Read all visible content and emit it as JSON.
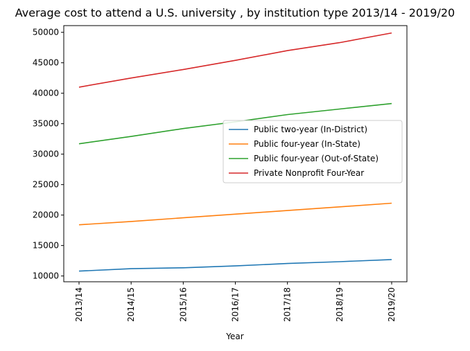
{
  "chart_data": {
    "type": "line",
    "title": "Average cost to attend a U.S. university , by institution type 2013/14 - 2019/20",
    "xlabel": "Year",
    "ylabel": "",
    "categories": [
      "2013/14",
      "2014/15",
      "2015/16",
      "2016/17",
      "2017/18",
      "2018/19",
      "2019/20"
    ],
    "yticks": [
      10000,
      15000,
      20000,
      25000,
      30000,
      35000,
      40000,
      45000,
      50000
    ],
    "ylim": [
      9050,
      51100
    ],
    "grid": false,
    "legend_position": "center-right",
    "series": [
      {
        "name": "Public two-year (In-District)",
        "color": "#1f77b4",
        "values": [
          10800,
          11200,
          11350,
          11650,
          12050,
          12350,
          12700
        ]
      },
      {
        "name": "Public four-year (In-State)",
        "color": "#ff7f0e",
        "values": [
          18400,
          18950,
          19550,
          20150,
          20750,
          21350,
          21950
        ]
      },
      {
        "name": "Public four-year (Out-of-State)",
        "color": "#2ca02c",
        "values": [
          31700,
          32900,
          34200,
          35300,
          36500,
          37400,
          38300
        ]
      },
      {
        "name": "Private Nonprofit Four-Year",
        "color": "#d62728",
        "values": [
          41000,
          42500,
          43900,
          45400,
          47000,
          48300,
          49900
        ]
      }
    ]
  }
}
